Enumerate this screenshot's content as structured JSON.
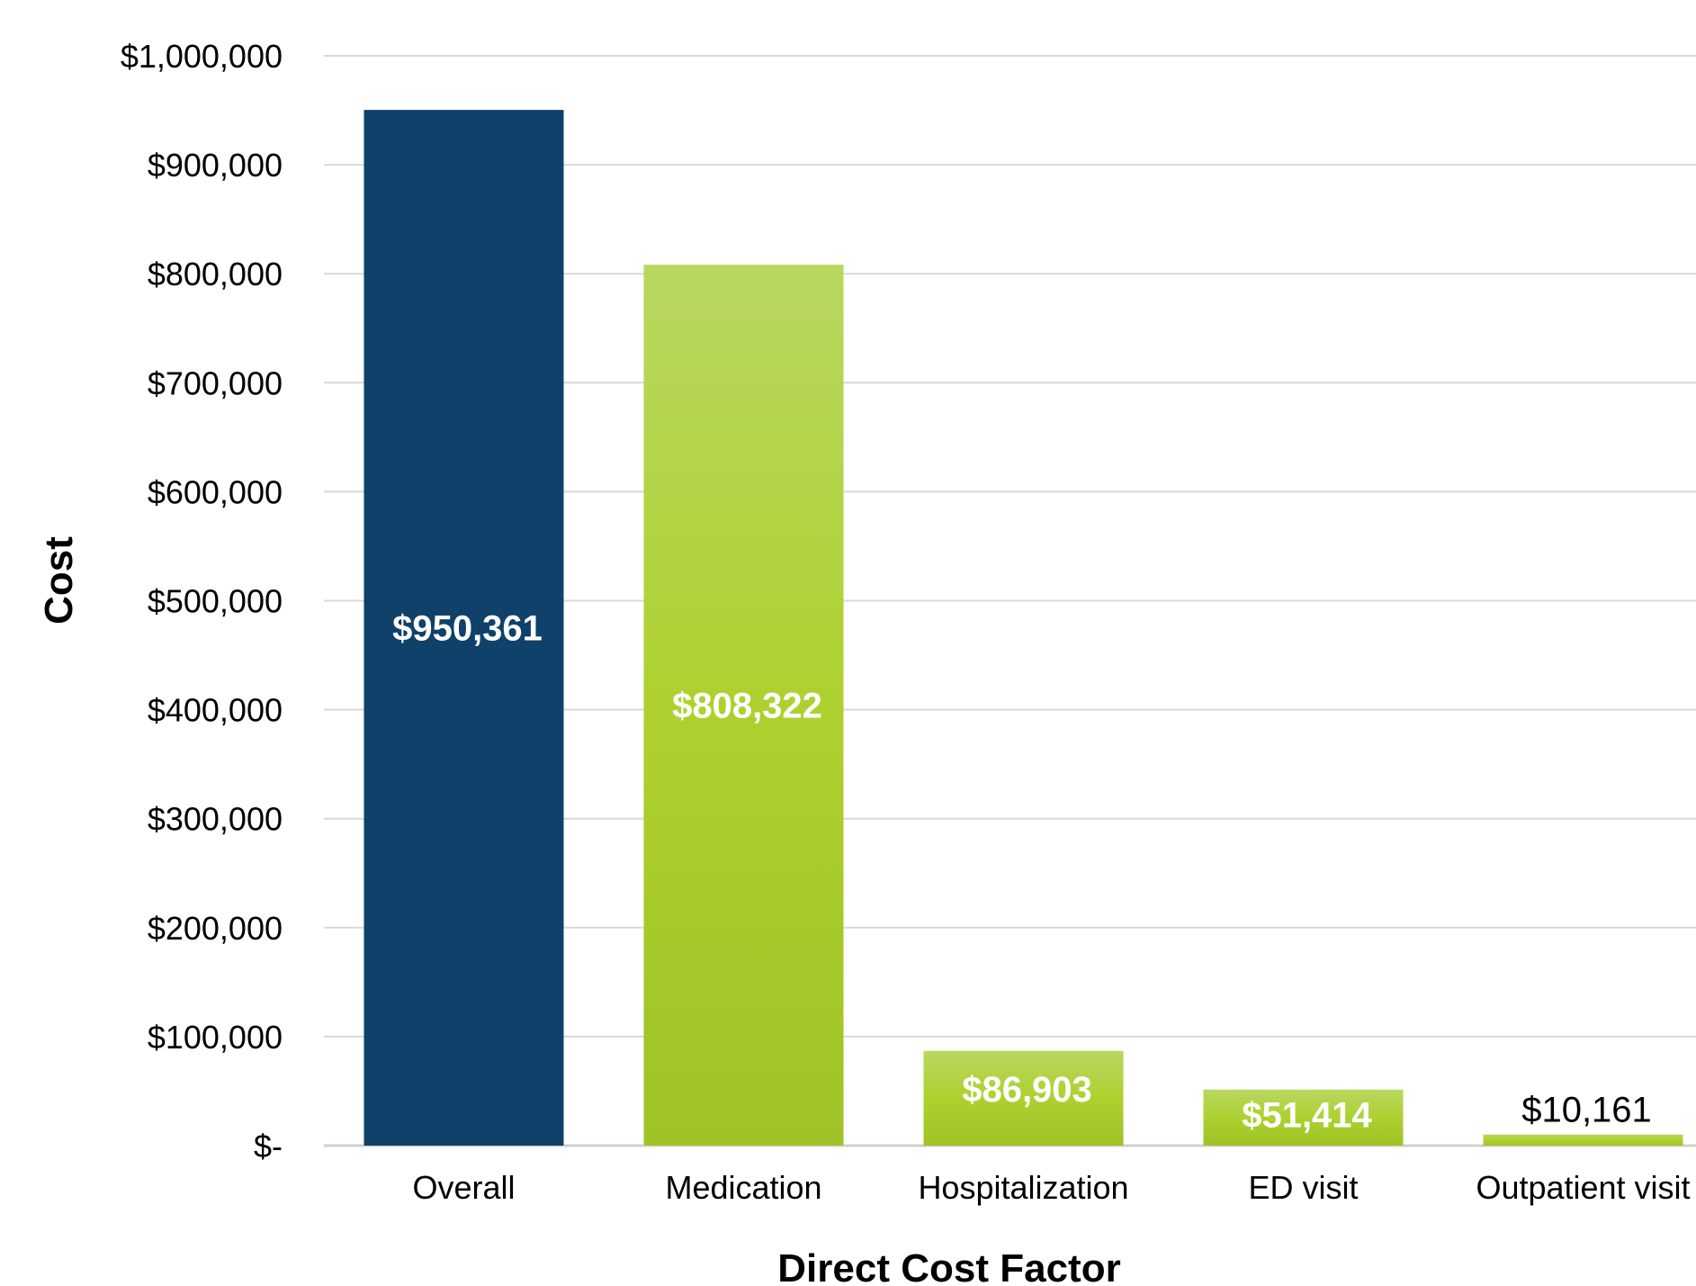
{
  "chart_data": {
    "type": "bar",
    "title": "",
    "xlabel": "Direct Cost Factor",
    "ylabel": "Cost",
    "categories": [
      "Overall",
      "Medication",
      "Hospitalization",
      "ED visit",
      "Outpatient visit"
    ],
    "values": [
      950361,
      808322,
      86903,
      51414,
      10161
    ],
    "value_labels": [
      "$950,361",
      "$808,322",
      "$86,903",
      "$51,414",
      "$10,161"
    ],
    "ylim": [
      0,
      1000000
    ],
    "yticks": [
      0,
      100000,
      200000,
      300000,
      400000,
      500000,
      600000,
      700000,
      800000,
      900000,
      1000000
    ],
    "ytick_labels": [
      "$-",
      "$100,000",
      "$200,000",
      "$300,000",
      "$400,000",
      "$500,000",
      "$600,000",
      "$700,000",
      "$800,000",
      "$900,000",
      "$1,000,000"
    ],
    "grid": true,
    "legend": "none",
    "colors": {
      "overall": "#0f416a",
      "factor_top": "#b8d760",
      "factor_mid": "#aed12f",
      "factor_bottom": "#9fc226"
    }
  }
}
